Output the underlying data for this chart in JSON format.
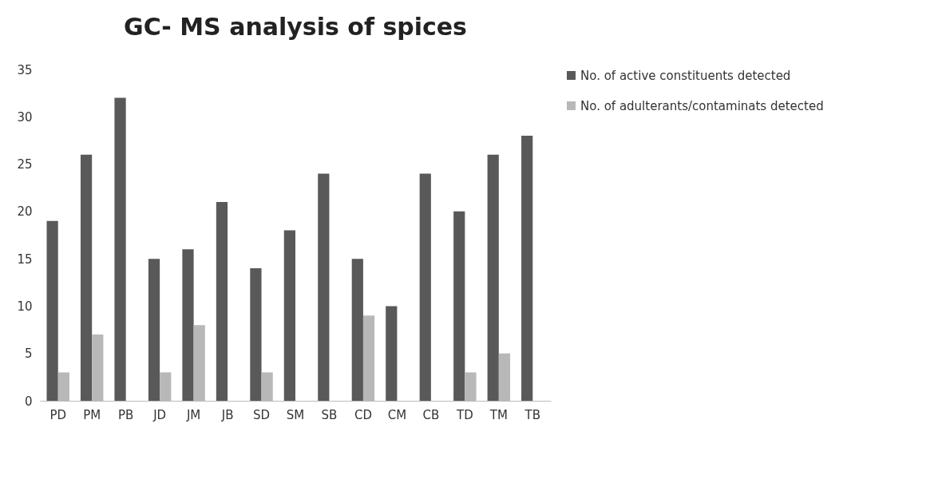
{
  "chart_data": {
    "type": "bar",
    "title": "GC- MS analysis of spices",
    "categories": [
      "PD",
      "PM",
      "PB",
      "JD",
      "JM",
      "JB",
      "SD",
      "SM",
      "SB",
      "CD",
      "CM",
      "CB",
      "TD",
      "TM",
      "TB"
    ],
    "series": [
      {
        "name": "No. of active constituents detected",
        "color": "#595959",
        "values": [
          19,
          26,
          32,
          15,
          16,
          21,
          14,
          18,
          24,
          15,
          10,
          24,
          20,
          26,
          28
        ]
      },
      {
        "name": "No. of adulterants/contaminats detected",
        "color": "#b8b8b8",
        "values": [
          3,
          7,
          null,
          3,
          8,
          null,
          3,
          null,
          null,
          9,
          null,
          null,
          3,
          5,
          null
        ]
      }
    ],
    "ylim": [
      0,
      35
    ],
    "yticks": [
      0,
      5,
      10,
      15,
      20,
      25,
      30,
      35
    ],
    "grid": false,
    "legend": "right"
  }
}
